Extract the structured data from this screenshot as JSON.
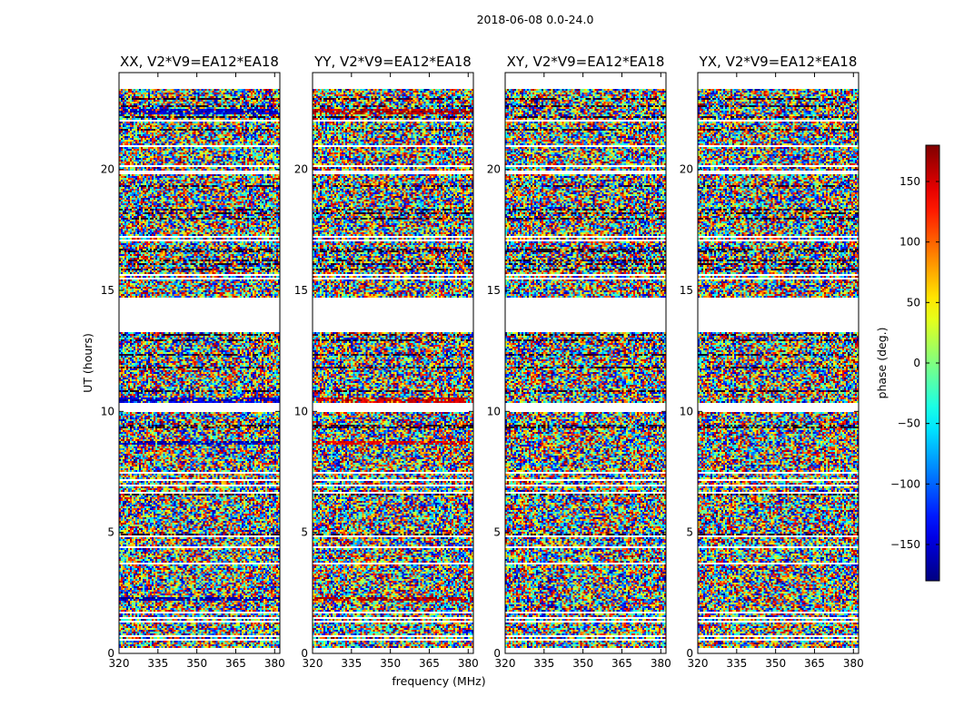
{
  "chart_data": {
    "type": "heatmap",
    "suptitle": "2018-06-08 0.0-24.0",
    "panels": [
      {
        "title": "XX, V2*V9=EA12*EA18",
        "pol": "XX"
      },
      {
        "title": "YY, V2*V9=EA12*EA18",
        "pol": "YY"
      },
      {
        "title": "XY, V2*V9=EA12*EA18",
        "pol": "XY"
      },
      {
        "title": "YX, V2*V9=EA12*EA18",
        "pol": "YX"
      }
    ],
    "xlabel": "frequency (MHz)",
    "ylabel": "UT (hours)",
    "xlim": [
      320,
      382
    ],
    "ylim": [
      0,
      24
    ],
    "xticks": [
      "320",
      "335",
      "350",
      "365",
      "380"
    ],
    "xtick_values": [
      320,
      335,
      350,
      365,
      380
    ],
    "yticks": [
      "0",
      "5",
      "10",
      "15",
      "20"
    ],
    "ytick_values": [
      0,
      5,
      10,
      15,
      20
    ],
    "colorbar": {
      "label": "phase (deg.)",
      "range": [
        -180,
        180
      ],
      "ticks": [
        "150",
        "100",
        "50",
        "0",
        "−50",
        "−100",
        "−150"
      ],
      "tick_values": [
        150,
        100,
        50,
        0,
        -50,
        -100,
        -150
      ],
      "colormap": "jet"
    },
    "flagged_ut_ranges": [
      [
        0.0,
        0.05
      ],
      [
        10.0,
        10.35
      ],
      [
        13.3,
        14.7
      ],
      [
        23.3,
        24.0
      ]
    ],
    "description": "Visibility phase vs frequency and UT; data mostly noise-like phases with horizontal flagged (blank) gaps."
  }
}
